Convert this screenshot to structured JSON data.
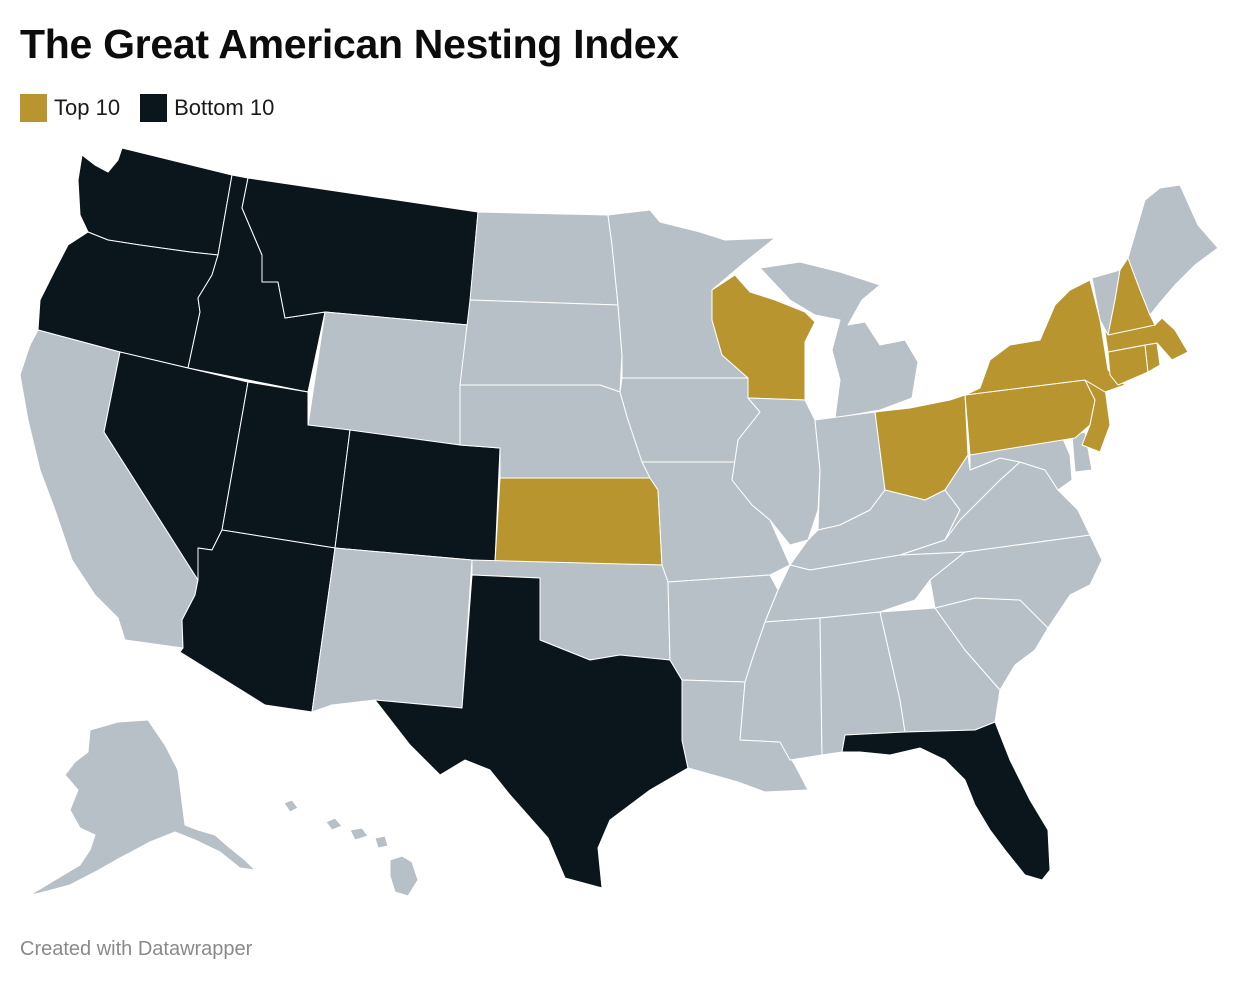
{
  "title": "The Great American Nesting Index",
  "legend": [
    {
      "label": "Top 10",
      "color": "#b8952f"
    },
    {
      "label": "Bottom 10",
      "color": "#0a161c"
    }
  ],
  "colors": {
    "top": "#b8952f",
    "bottom": "#0a161c",
    "other": "#b7c0c6",
    "border": "#ffffff"
  },
  "states": {
    "WA": "bottom",
    "OR": "bottom",
    "CA": "other",
    "ID": "bottom",
    "NV": "bottom",
    "MT": "bottom",
    "WY": "other",
    "UT": "bottom",
    "AZ": "bottom",
    "CO": "bottom",
    "NM": "other",
    "ND": "other",
    "SD": "other",
    "NE": "other",
    "KS": "top",
    "OK": "other",
    "TX": "bottom",
    "MN": "other",
    "IA": "other",
    "MO": "other",
    "AR": "other",
    "LA": "other",
    "WI": "top",
    "IL": "other",
    "MS": "other",
    "MI": "other",
    "IN": "other",
    "OH": "top",
    "KY": "other",
    "TN": "other",
    "AL": "other",
    "GA": "other",
    "FL": "bottom",
    "SC": "other",
    "NC": "other",
    "VA": "other",
    "WV": "other",
    "MD": "other",
    "DE": "other",
    "PA": "top",
    "NJ": "top",
    "NY": "top",
    "CT": "top",
    "RI": "top",
    "MA": "top",
    "VT": "other",
    "NH": "top",
    "ME": "other",
    "AK": "other",
    "HI": "other"
  },
  "footer": "Created with Datawrapper"
}
